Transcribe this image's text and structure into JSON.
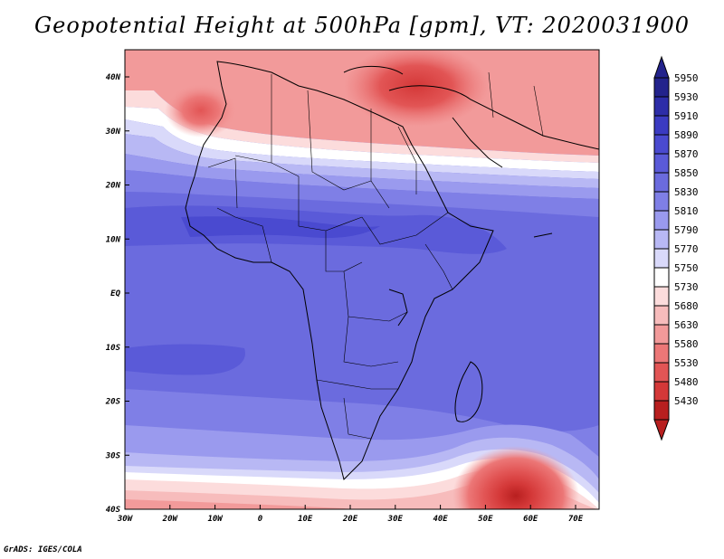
{
  "title": "Geopotential Height at 500hPa [gpm], VT: 2020031900",
  "credit": "GrADS: IGES/COLA",
  "axes": {
    "lon_ticks": [
      "30W",
      "20W",
      "10W",
      "0",
      "10E",
      "20E",
      "30E",
      "40E",
      "50E",
      "60E",
      "70E"
    ],
    "lat_ticks": [
      "40N",
      "30N",
      "20N",
      "10N",
      "EQ",
      "10S",
      "20S",
      "30S",
      "40S"
    ]
  },
  "colorbar": {
    "levels": [
      "5950",
      "5930",
      "5910",
      "5890",
      "5870",
      "5850",
      "5830",
      "5810",
      "5790",
      "5770",
      "5750",
      "5730",
      "5680",
      "5630",
      "5580",
      "5530",
      "5480",
      "5430"
    ],
    "colors": [
      "#23238c",
      "#2d2da8",
      "#3b3bc2",
      "#4a4ad0",
      "#5a5ad8",
      "#6b6bde",
      "#7f7fe6",
      "#9a9aee",
      "#b8b8f4",
      "#d9d9fa",
      "#ffffff",
      "#fcdcdc",
      "#f7bcbc",
      "#f29a9a",
      "#ec7777",
      "#e25555",
      "#d43838",
      "#b81f1f"
    ]
  }
}
